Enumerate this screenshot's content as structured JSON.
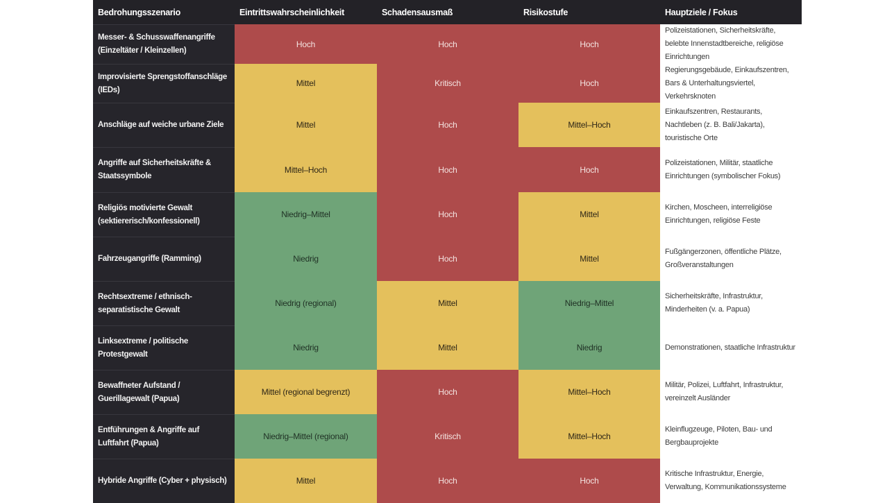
{
  "chart_data": {
    "type": "table",
    "title": "",
    "columns": [
      "Bedrohungsszenario",
      "Eintrittswahrscheinlichkeit",
      "Schadensausmaß",
      "Risikostufe",
      "Hauptziele / Fokus"
    ],
    "rows": [
      {
        "scenario": "Messer- & Schusswaffenangriffe (Einzeltäter / Kleinzellen)",
        "likelihood": {
          "label": "Hoch",
          "level": "red"
        },
        "damage": {
          "label": "Hoch",
          "level": "red"
        },
        "risk": {
          "label": "Hoch",
          "level": "red"
        },
        "targets": "Polizeistationen, Sicherheitskräfte, belebte Innenstadtbereiche, religiöse Einrichtungen"
      },
      {
        "scenario": "Improvisierte Sprengstoffanschläge (IEDs)",
        "likelihood": {
          "label": "Mittel",
          "level": "yellow"
        },
        "damage": {
          "label": "Kritisch",
          "level": "red"
        },
        "risk": {
          "label": "Hoch",
          "level": "red"
        },
        "targets": "Regierungsgebäude, Einkaufszentren, Bars & Unterhaltungsviertel, Verkehrsknoten"
      },
      {
        "scenario": "Anschläge auf weiche urbane Ziele",
        "likelihood": {
          "label": "Mittel",
          "level": "yellow"
        },
        "damage": {
          "label": "Hoch",
          "level": "red"
        },
        "risk": {
          "label": "Mittel–Hoch",
          "level": "yellow"
        },
        "targets": "Einkaufszentren, Restaurants, Nachtleben (z. B. Bali/Jakarta), touristische Orte"
      },
      {
        "scenario": "Angriffe auf Sicherheitskräfte & Staatssymbole",
        "likelihood": {
          "label": "Mittel–Hoch",
          "level": "yellow"
        },
        "damage": {
          "label": "Hoch",
          "level": "red"
        },
        "risk": {
          "label": "Hoch",
          "level": "red"
        },
        "targets": "Polizeistationen, Militär, staatliche Einrichtungen (symbolischer Fokus)"
      },
      {
        "scenario": "Religiös motivierte Gewalt (sektiererisch/konfessionell)",
        "likelihood": {
          "label": "Niedrig–Mittel",
          "level": "green"
        },
        "damage": {
          "label": "Hoch",
          "level": "red"
        },
        "risk": {
          "label": "Mittel",
          "level": "yellow"
        },
        "targets": "Kirchen, Moscheen, interreligiöse Einrichtungen, religiöse Feste"
      },
      {
        "scenario": "Fahrzeugangriffe (Ramming)",
        "likelihood": {
          "label": "Niedrig",
          "level": "green"
        },
        "damage": {
          "label": "Hoch",
          "level": "red"
        },
        "risk": {
          "label": "Mittel",
          "level": "yellow"
        },
        "targets": "Fußgängerzonen, öffentliche Plätze, Großveranstaltungen"
      },
      {
        "scenario": "Rechtsextreme / ethnisch-separatistische Gewalt",
        "likelihood": {
          "label": "Niedrig (regional)",
          "level": "green"
        },
        "damage": {
          "label": "Mittel",
          "level": "yellow"
        },
        "risk": {
          "label": "Niedrig–Mittel",
          "level": "green"
        },
        "targets": "Sicherheitskräfte, Infrastruktur, Minderheiten (v. a. Papua)"
      },
      {
        "scenario": "Linksextreme / politische Protestgewalt",
        "likelihood": {
          "label": "Niedrig",
          "level": "green"
        },
        "damage": {
          "label": "Mittel",
          "level": "yellow"
        },
        "risk": {
          "label": "Niedrig",
          "level": "green"
        },
        "targets": "Demonstrationen, staatliche Infrastruktur"
      },
      {
        "scenario": "Bewaffneter Aufstand / Guerillagewalt (Papua)",
        "likelihood": {
          "label": "Mittel (regional begrenzt)",
          "level": "yellow"
        },
        "damage": {
          "label": "Hoch",
          "level": "red"
        },
        "risk": {
          "label": "Mittel–Hoch",
          "level": "yellow"
        },
        "targets": "Militär, Polizei, Luftfahrt, Infrastruktur, vereinzelt Ausländer"
      },
      {
        "scenario": "Entführungen & Angriffe auf Luftfahrt (Papua)",
        "likelihood": {
          "label": "Niedrig–Mittel (regional)",
          "level": "green"
        },
        "damage": {
          "label": "Kritisch",
          "level": "red"
        },
        "risk": {
          "label": "Mittel–Hoch",
          "level": "yellow"
        },
        "targets": "Kleinflugzeuge, Piloten, Bau- und Bergbauprojekte"
      },
      {
        "scenario": "Hybride Angriffe (Cyber + physisch)",
        "likelihood": {
          "label": "Mittel",
          "level": "yellow"
        },
        "damage": {
          "label": "Hoch",
          "level": "red"
        },
        "risk": {
          "label": "Hoch",
          "level": "red"
        },
        "targets": "Kritische Infrastruktur, Energie, Verwaltung, Kommunikationssysteme"
      }
    ],
    "palette": {
      "page_bg": "#FFFFFF",
      "header_bg": "#232227",
      "header_text": "#FFFFFF",
      "scenario_bg": "#26252B",
      "scenario_text": "#F2F2F2",
      "scenario_divider": "#38373E",
      "targets_bg": "#FFFFFF",
      "targets_text": "#3C3C3C",
      "levels": {
        "red": {
          "bg": "#AE4B4B",
          "text": "#F4E4E1"
        },
        "yellow": {
          "bg": "#E4C05C",
          "text": "#2E2617"
        },
        "green": {
          "bg": "#6FA478",
          "text": "#1F3024"
        }
      }
    }
  }
}
